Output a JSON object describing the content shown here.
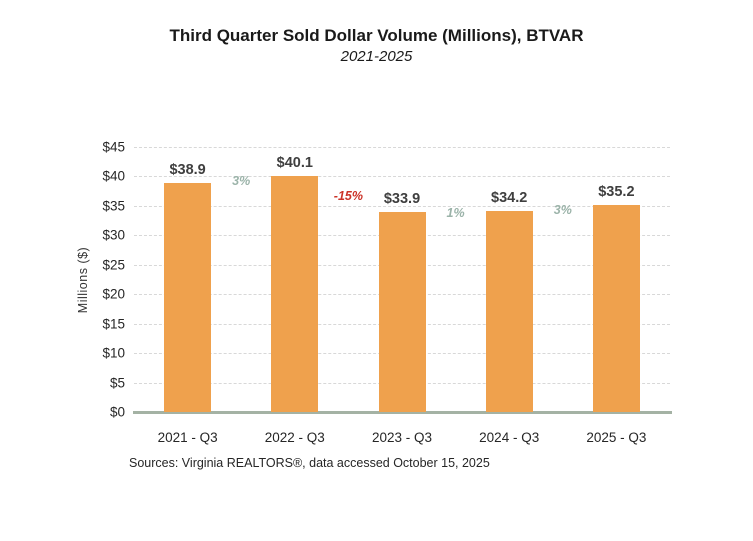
{
  "chart_data": {
    "type": "bar",
    "title": "Third Quarter Sold Dollar Volume (Millions), BTVAR",
    "subtitle": "2021-2025",
    "ylabel": "Millions ($)",
    "xlabel": "",
    "categories": [
      "2021 - Q3",
      "2022 - Q3",
      "2023 - Q3",
      "2024 - Q3",
      "2025 - Q3"
    ],
    "values": [
      38.9,
      40.1,
      33.9,
      34.2,
      35.2
    ],
    "bar_value_labels": [
      "$38.9",
      "$40.1",
      "$33.9",
      "$34.2",
      "$35.2"
    ],
    "annotations": [
      {
        "text": "3%",
        "between": [
          0,
          1
        ],
        "sentiment": "positive"
      },
      {
        "text": "-15%",
        "between": [
          1,
          2
        ],
        "sentiment": "negative"
      },
      {
        "text": "1%",
        "between": [
          2,
          3
        ],
        "sentiment": "positive"
      },
      {
        "text": "3%",
        "between": [
          3,
          4
        ],
        "sentiment": "positive"
      }
    ],
    "ylim": [
      0,
      45
    ],
    "yticks": [
      {
        "value": 0,
        "label": "$0"
      },
      {
        "value": 5,
        "label": "$5"
      },
      {
        "value": 10,
        "label": "$10"
      },
      {
        "value": 15,
        "label": "$15"
      },
      {
        "value": 20,
        "label": "$20"
      },
      {
        "value": 25,
        "label": "$25"
      },
      {
        "value": 30,
        "label": "$30"
      },
      {
        "value": 35,
        "label": "$35"
      },
      {
        "value": 40,
        "label": "$40"
      },
      {
        "value": 45,
        "label": "$45"
      }
    ],
    "grid": true,
    "legend": "none",
    "colors": {
      "bar": "#EFA14D",
      "baseline": "#A4B2A4",
      "grid": "#D8D8D8",
      "value_label": "#3F3F3F",
      "positive_pct": "#9BB3A9",
      "negative_pct": "#CC3328"
    },
    "source": "Sources: Virginia REALTORS®, data accessed October 15, 2025"
  }
}
